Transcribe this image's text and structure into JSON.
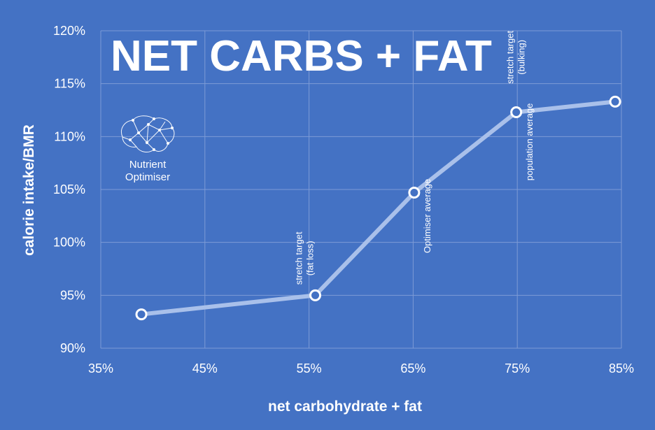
{
  "chart_data": {
    "type": "line",
    "title": "NET CARBS + FAT",
    "xlabel": "net carbohydrate + fat",
    "ylabel": "calorie intake/BMR",
    "xlim": [
      35,
      85
    ],
    "ylim": [
      90,
      120
    ],
    "x_ticks": [
      35,
      45,
      55,
      65,
      75,
      85
    ],
    "y_ticks": [
      90,
      95,
      100,
      105,
      110,
      115,
      120
    ],
    "x_tick_labels": [
      "35%",
      "45%",
      "55%",
      "65%",
      "75%",
      "85%"
    ],
    "y_tick_labels": [
      "90%",
      "95%",
      "100%",
      "105%",
      "110%",
      "115%",
      "120%"
    ],
    "grid": true,
    "legend": "none",
    "series": [
      {
        "x": [
          38.9,
          55.6,
          65.1,
          74.9,
          84.4
        ],
        "y": [
          93.2,
          95.0,
          104.7,
          112.3,
          113.3
        ]
      }
    ],
    "annotations": [
      {
        "lines": [
          "stretch target",
          "(fat loss)"
        ],
        "x": 54.6,
        "y": 98.5
      },
      {
        "lines": [
          "Optimiser average"
        ],
        "x": 66.4,
        "y": 102.5
      },
      {
        "lines": [
          "stretch target",
          "(bulking)"
        ],
        "x": 74.9,
        "y": 117.5
      },
      {
        "lines": [
          "population average"
        ],
        "x": 76.2,
        "y": 109.5
      }
    ]
  },
  "logo": {
    "name": "brain-logo",
    "line1": "Nutrient",
    "line2": "Optimiser"
  },
  "colors": {
    "background": "#4472c4",
    "line": "#a9c0ea",
    "grid": "#7d9bd6",
    "text": "#ffffff"
  }
}
